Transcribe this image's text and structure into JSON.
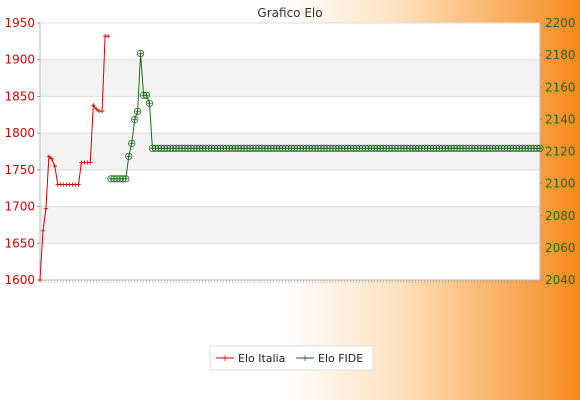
{
  "chart_data": {
    "type": "line",
    "title": "Grafico Elo",
    "xlabel": "",
    "ylabel": "",
    "y_left": {
      "min": 1600,
      "max": 1950,
      "ticks": [
        1600,
        1650,
        1700,
        1750,
        1800,
        1850,
        1900,
        1950
      ],
      "color": "#d40000"
    },
    "y_right": {
      "min": 2040,
      "max": 2200,
      "ticks": [
        2040,
        2060,
        2080,
        2100,
        2120,
        2140,
        2160,
        2180,
        2200
      ],
      "color": "#1a6b1a"
    },
    "grid": true,
    "legend_position": "bottom-center",
    "x_count": 170,
    "series": [
      {
        "name": "Elo Italia",
        "axis": "left",
        "color": "#d40000",
        "marker": "plus",
        "x": [
          0,
          1,
          2,
          3,
          4,
          5,
          6,
          7,
          8,
          9,
          10,
          11,
          12,
          13,
          14,
          15,
          16,
          17,
          18,
          19,
          20,
          21,
          22,
          23
        ],
        "values": [
          1600,
          1667,
          1697,
          1768,
          1765,
          1755,
          1730,
          1730,
          1730,
          1730,
          1730,
          1730,
          1730,
          1730,
          1760,
          1760,
          1760,
          1760,
          1838,
          1833,
          1830,
          1830,
          1932,
          1932
        ]
      },
      {
        "name": "Elo FIDE",
        "axis": "right",
        "color": "#1a6b1a",
        "marker": "circle",
        "x": [
          24,
          25,
          26,
          27,
          28,
          29,
          30,
          31,
          32,
          33,
          34,
          35,
          36,
          37,
          38,
          39,
          40,
          41,
          42,
          43,
          44,
          45,
          46,
          47,
          48,
          49,
          50,
          51,
          52,
          53,
          54,
          55,
          56,
          57,
          58,
          59,
          60,
          61,
          62,
          63,
          64,
          65,
          66,
          67,
          68,
          69,
          70,
          71,
          72,
          73,
          74,
          75,
          76,
          77,
          78,
          79,
          80,
          81,
          82,
          83,
          84,
          85,
          86,
          87,
          88,
          89,
          90,
          91,
          92,
          93,
          94,
          95,
          96,
          97,
          98,
          99,
          100,
          101,
          102,
          103,
          104,
          105,
          106,
          107,
          108,
          109,
          110,
          111,
          112,
          113,
          114,
          115,
          116,
          117,
          118,
          119,
          120,
          121,
          122,
          123,
          124,
          125,
          126,
          127,
          128,
          129,
          130,
          131,
          132,
          133,
          134,
          135,
          136,
          137,
          138,
          139,
          140,
          141,
          142,
          143,
          144,
          145,
          146,
          147,
          148,
          149,
          150,
          151,
          152,
          153,
          154,
          155,
          156,
          157,
          158,
          159,
          160,
          161,
          162,
          163,
          164,
          165,
          166,
          167,
          168,
          169
        ],
        "values": [
          2103,
          2103,
          2103,
          2103,
          2103,
          2103,
          2117,
          2125,
          2140,
          2145,
          2181,
          2155,
          2155,
          2150,
          2122,
          2122,
          2122,
          2122,
          2122,
          2122,
          2122,
          2122,
          2122,
          2122,
          2122,
          2122,
          2122,
          2122,
          2122,
          2122,
          2122,
          2122,
          2122,
          2122,
          2122,
          2122,
          2122,
          2122,
          2122,
          2122,
          2122,
          2122,
          2122,
          2122,
          2122,
          2122,
          2122,
          2122,
          2122,
          2122,
          2122,
          2122,
          2122,
          2122,
          2122,
          2122,
          2122,
          2122,
          2122,
          2122,
          2122,
          2122,
          2122,
          2122,
          2122,
          2122,
          2122,
          2122,
          2122,
          2122,
          2122,
          2122,
          2122,
          2122,
          2122,
          2122,
          2122,
          2122,
          2122,
          2122,
          2122,
          2122,
          2122,
          2122,
          2122,
          2122,
          2122,
          2122,
          2122,
          2122,
          2122,
          2122,
          2122,
          2122,
          2122,
          2122,
          2122,
          2122,
          2122,
          2122,
          2122,
          2122,
          2122,
          2122,
          2122,
          2122,
          2122,
          2122,
          2122,
          2122,
          2122,
          2122,
          2122,
          2122,
          2122,
          2122,
          2122,
          2122,
          2122,
          2122,
          2122,
          2122,
          2122,
          2122,
          2122,
          2122,
          2122,
          2122,
          2122,
          2122,
          2122,
          2122,
          2122,
          2122,
          2122,
          2122,
          2122,
          2122,
          2122,
          2122,
          2122,
          2122,
          2122,
          2122,
          2122,
          2122
        ]
      }
    ]
  },
  "legend": {
    "items": [
      {
        "label": "Elo Italia",
        "color": "#d40000"
      },
      {
        "label": "Elo FIDE",
        "color": "#1a6b1a"
      }
    ]
  }
}
